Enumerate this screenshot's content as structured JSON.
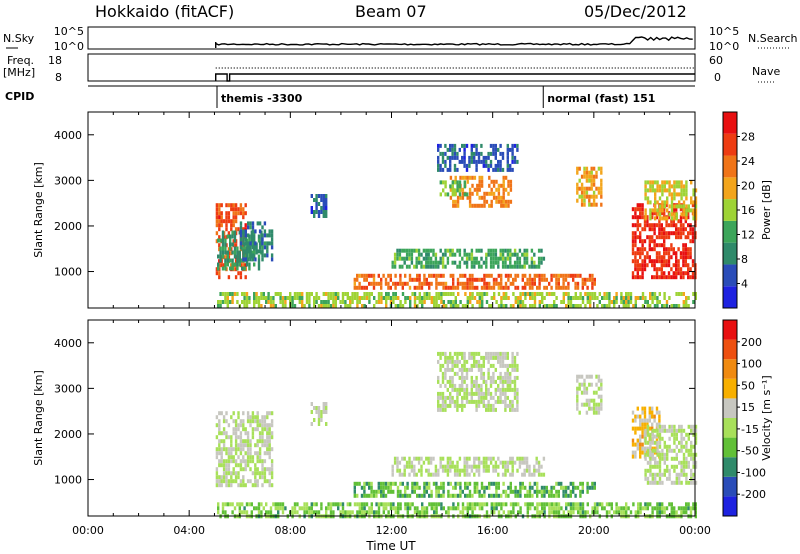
{
  "header": {
    "station": "Hokkaido (fitACF)",
    "beam": "Beam 07",
    "date": "05/Dec/2012"
  },
  "top_panels": {
    "nsky_label": "N.Sky",
    "nsky_ticks": [
      "10^5",
      "10^0"
    ],
    "nsky_right_ticks": [
      "10^5",
      "10^0"
    ],
    "nsearch_label": "N.Search",
    "freq_label": "Freq.",
    "freq_unit": "[MHz]",
    "freq_ticks": [
      "18",
      "8"
    ],
    "nave_ticks": [
      "60",
      "0"
    ],
    "nave_label": "Nave",
    "cpid_label": "CPID",
    "cpid_segments": [
      {
        "name": "themis -3300",
        "start_hour": 5.1
      },
      {
        "name": "normal (fast) 151",
        "start_hour": 18.0
      }
    ]
  },
  "colors": {
    "power": [
      "#1e22e0",
      "#2a4cb8",
      "#2f8a6a",
      "#3ca55a",
      "#9ed335",
      "#f3a51c",
      "#f07418",
      "#ee3c12",
      "#e80f10"
    ],
    "velocity": [
      "#1e22e0",
      "#2a4cb8",
      "#2f8a6a",
      "#61c037",
      "#a8e05a",
      "#c7c7c0",
      "#f8b000",
      "#f08a10",
      "#ee5010",
      "#e80f10"
    ]
  },
  "chart_data": [
    {
      "type": "heatmap",
      "name": "power",
      "ylabel": "Slant Range [km]",
      "xlim": [
        0,
        24
      ],
      "ylim": [
        200,
        4500
      ],
      "yticks": [
        "4000",
        "3000",
        "2000",
        "1000"
      ],
      "colorbar_label": "Power [dB]",
      "colorbar_ticks": [
        "28",
        "24",
        "20",
        "16",
        "12",
        "8",
        "4"
      ],
      "colorbar_range": [
        0,
        32
      ],
      "regions": [
        {
          "t0": 5.05,
          "t1": 6.2,
          "r0": 850,
          "r1": 2500,
          "power": 26
        },
        {
          "t0": 5.1,
          "t1": 6.9,
          "r0": 1100,
          "r1": 1900,
          "power": 10
        },
        {
          "t0": 6.0,
          "t1": 7.3,
          "r0": 1300,
          "r1": 2100,
          "power": 8
        },
        {
          "t0": 8.8,
          "t1": 9.4,
          "r0": 2200,
          "r1": 2700,
          "power": 6
        },
        {
          "t0": 13.8,
          "t1": 17.0,
          "r0": 3200,
          "r1": 3800,
          "power": 6
        },
        {
          "t0": 14.3,
          "t1": 16.7,
          "r0": 2400,
          "r1": 3100,
          "power": 22
        },
        {
          "t0": 13.9,
          "t1": 15.0,
          "r0": 2700,
          "r1": 3000,
          "power": 14
        },
        {
          "t0": 19.3,
          "t1": 20.3,
          "r0": 2500,
          "r1": 3300,
          "power": 20
        },
        {
          "t0": 21.5,
          "t1": 24.0,
          "r0": 900,
          "r1": 2500,
          "power": 28
        },
        {
          "t0": 22.0,
          "t1": 24.0,
          "r0": 2200,
          "r1": 3000,
          "power": 18
        },
        {
          "t0": 10.5,
          "t1": 20.0,
          "r0": 650,
          "r1": 950,
          "power": 24
        },
        {
          "t0": 12.0,
          "t1": 18.0,
          "r0": 1100,
          "r1": 1500,
          "power": 12
        },
        {
          "t0": 5.1,
          "t1": 24.0,
          "r0": 200,
          "r1": 550,
          "power": 16
        }
      ]
    },
    {
      "type": "heatmap",
      "name": "velocity",
      "xlabel": "Time UT",
      "ylabel": "Slant Range [km]",
      "xlim": [
        0,
        24
      ],
      "ylim": [
        200,
        4500
      ],
      "xticks": [
        "00:00",
        "04:00",
        "08:00",
        "12:00",
        "16:00",
        "20:00",
        "00:00"
      ],
      "yticks": [
        "4000",
        "3000",
        "2000",
        "1000"
      ],
      "colorbar_label": "Velocity [m s⁻¹]",
      "colorbar_ticks": [
        "200",
        "100",
        "50",
        "15",
        "-15",
        "-50",
        "-100",
        "-200"
      ],
      "colorbar_range": [
        -250,
        250
      ],
      "regions": [
        {
          "t0": 5.05,
          "t1": 7.3,
          "r0": 850,
          "r1": 2500,
          "velocity": 0
        },
        {
          "t0": 8.8,
          "t1": 9.4,
          "r0": 2200,
          "r1": 2700,
          "velocity": 0
        },
        {
          "t0": 13.8,
          "t1": 17.0,
          "r0": 2500,
          "r1": 3800,
          "velocity": 0
        },
        {
          "t0": 19.3,
          "t1": 20.3,
          "r0": 2500,
          "r1": 3300,
          "velocity": 0
        },
        {
          "t0": 21.5,
          "t1": 22.6,
          "r0": 1500,
          "r1": 2600,
          "velocity": 60
        },
        {
          "t0": 22.0,
          "t1": 24.0,
          "r0": 900,
          "r1": 2200,
          "velocity": 0
        },
        {
          "t0": 10.5,
          "t1": 20.0,
          "r0": 650,
          "r1": 950,
          "velocity": -80
        },
        {
          "t0": 12.0,
          "t1": 18.0,
          "r0": 1100,
          "r1": 1500,
          "velocity": 0
        },
        {
          "t0": 5.1,
          "t1": 24.0,
          "r0": 200,
          "r1": 500,
          "velocity": -60
        }
      ]
    }
  ]
}
